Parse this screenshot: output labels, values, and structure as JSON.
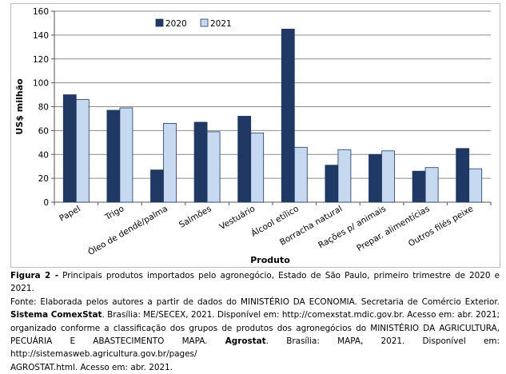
{
  "chart_data": {
    "type": "bar",
    "categories": [
      "Papel",
      "Trigo",
      "Óleo de dendê/palma",
      "Salmões",
      "Vestuário",
      "Álcool etílico",
      "Borracha natural",
      "Rações p/ animais",
      "Prepar. alimentícias",
      "Outros filés peixe"
    ],
    "series": [
      {
        "name": "2020",
        "color": "#1f3864",
        "values": [
          90,
          77,
          27,
          67,
          72,
          145,
          31,
          40,
          26,
          45
        ]
      },
      {
        "name": "2021",
        "color": "#c6d9f1",
        "values": [
          86,
          79,
          66,
          59,
          58,
          46,
          44,
          43,
          29,
          28
        ]
      }
    ],
    "yticks": [
      0,
      20,
      40,
      60,
      80,
      100,
      120,
      140,
      160
    ],
    "ylim": [
      0,
      160
    ],
    "xlabel": "Produto",
    "ylabel": "US$ milhão",
    "legend_position": "top-center",
    "grid": true
  },
  "caption": {
    "figure_label": "Figura 2 -",
    "figure_text": " Principais produtos importados pelo agronegócio, Estado de São Paulo, primeiro trimestre de 2020 e 2021.",
    "source_text_1": "Fonte: Elaborada pelos autores a partir de dados do MINISTÉRIO DA ECONOMIA. Secretaria de Comércio Exterior. ",
    "source_bold_1": "Sistema ComexStat",
    "source_text_2": ". Brasília: ME/SECEX, 2021. Disponível em: http://comexstat.mdic.gov.br. Acesso em: abr. 2021; organizado conforme a classificação dos grupos de produtos dos agronegócios do MINISTÉRIO DA AGRICULTURA, PECUÁRIA E ABASTECIMENTO MAPA. ",
    "source_bold_2": "Agrostat",
    "source_text_3": ". Brasília: MAPA, 2021. Disponível em: http://sistemasweb.agricultura.gov.br/pages/",
    "source_text_4": "AGROSTAT.html. Acesso em: abr. 2021."
  }
}
